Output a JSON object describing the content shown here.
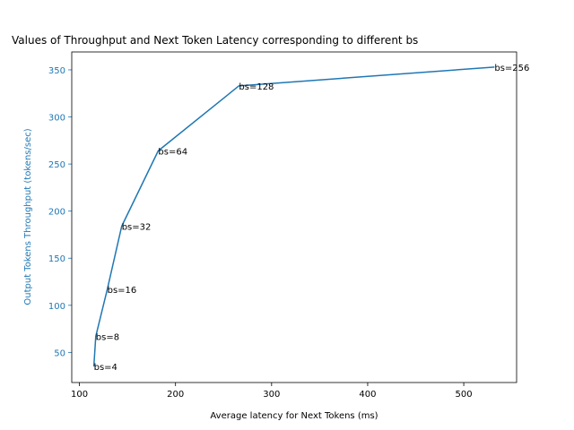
{
  "chart_data": {
    "type": "line",
    "title": "Values of Throughput and Next Token Latency corresponding to different bs",
    "xlabel": "Average latency for Next Tokens (ms)",
    "ylabel": "Output Tokens Throughput (tokens/sec)",
    "xlim": [
      92,
      555
    ],
    "ylim": [
      18,
      369
    ],
    "xticks": [
      100,
      200,
      300,
      400,
      500
    ],
    "yticks": [
      50,
      100,
      150,
      200,
      250,
      300,
      350
    ],
    "series": [
      {
        "color": "#1f77b4",
        "x": [
          115,
          117,
          129,
          144,
          182,
          266,
          532
        ],
        "y": [
          35,
          67,
          117,
          184,
          264,
          333,
          353
        ],
        "labels": [
          "bs=4",
          "bs=8",
          "bs=16",
          "bs=32",
          "bs=64",
          "bs=128",
          "bs=256"
        ]
      }
    ],
    "grid": false,
    "ylabel_color": "#1f77b4",
    "ytick_color": "#1f77b4"
  }
}
